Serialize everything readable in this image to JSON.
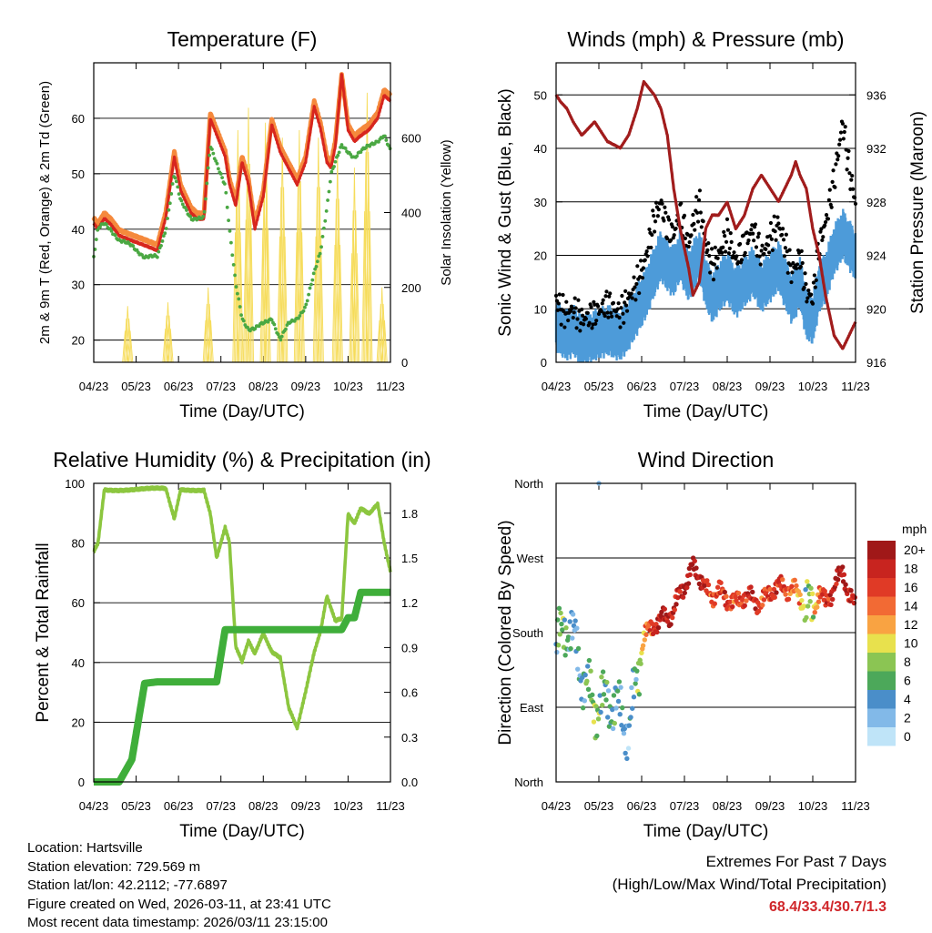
{
  "colors": {
    "temp_red": "#d7261e",
    "temp_orange": "#f5893c",
    "dewpoint_green": "#4aa843",
    "insolation_yellow": "#f6dc5a",
    "wind_blue": "#4d9bd9",
    "gust_black": "#000000",
    "pressure_maroon": "#a11c1c",
    "rh_lightgreen": "#8cc63f",
    "precip_green": "#3fae3a"
  },
  "chart_data": [
    {
      "id": "temperature",
      "type": "line",
      "title": "Temperature (F)",
      "xlabel": "Time (Day/UTC)",
      "ylabel": "2m & 9m T (Red, Orange) & 2m Td (Green)",
      "y2label": "Solar Insolation (Yellow)",
      "x_ticks": [
        "04/23",
        "05/23",
        "06/23",
        "07/23",
        "08/23",
        "09/23",
        "10/23",
        "11/23"
      ],
      "ylim": [
        16,
        70
      ],
      "y_ticks": [
        20,
        30,
        40,
        50,
        60
      ],
      "y2lim": [
        0,
        800
      ],
      "y2_ticks": [
        0,
        200,
        400,
        600
      ],
      "grid": true,
      "x_index": [
        0,
        0.1,
        0.25,
        0.4,
        0.6,
        0.9,
        1.2,
        1.5,
        1.7,
        1.9,
        2.05,
        2.3,
        2.45,
        2.6,
        2.75,
        2.9,
        3.1,
        3.2,
        3.35,
        3.5,
        3.65,
        3.8,
        4.0,
        4.2,
        4.4,
        4.6,
        4.8,
        5.0,
        5.2,
        5.35,
        5.5,
        5.6,
        5.7,
        5.85,
        6.0,
        6.15,
        6.3,
        6.5,
        6.7,
        6.85,
        7.0
      ],
      "series": [
        {
          "name": "2m T",
          "color_key": "temp_red",
          "values": [
            41,
            40,
            42,
            41,
            39,
            38,
            37,
            36,
            42,
            53,
            47,
            43,
            42,
            42,
            60,
            57,
            53,
            48,
            44,
            52,
            48,
            40,
            46,
            59,
            54,
            51,
            48,
            52,
            62,
            58,
            52,
            51,
            55,
            68,
            58,
            56,
            57,
            58,
            60,
            64,
            63
          ]
        },
        {
          "name": "9m T",
          "color_key": "temp_orange",
          "values": [
            42,
            41,
            43,
            42,
            40,
            39,
            38,
            37,
            43,
            54,
            48,
            44,
            43,
            43,
            61,
            58,
            54,
            49,
            45,
            53,
            49,
            41,
            47,
            60,
            55,
            52,
            49,
            53,
            63,
            59,
            53,
            52,
            56,
            68,
            59,
            57,
            58,
            59,
            61,
            65,
            64
          ]
        },
        {
          "name": "2m Td",
          "color_key": "dewpoint_green",
          "values": [
            35,
            40,
            41,
            40,
            38,
            37,
            35,
            35,
            40,
            50,
            45,
            42,
            42,
            42,
            55,
            52,
            48,
            40,
            30,
            24,
            22,
            22,
            23,
            24,
            20,
            23,
            24,
            26,
            32,
            36,
            44,
            50,
            52,
            55,
            54,
            53,
            54,
            55,
            56,
            57,
            54
          ]
        }
      ],
      "insolation_days": [
        0.8,
        1.75,
        2.7,
        3.4,
        3.65,
        4.05,
        4.45,
        4.85,
        5.3,
        5.75,
        6.15,
        6.45,
        6.8
      ],
      "insolation_peaks": [
        150,
        160,
        200,
        620,
        680,
        640,
        600,
        620,
        600,
        560,
        520,
        720,
        200
      ]
    },
    {
      "id": "winds",
      "type": "scatter",
      "title": "Winds (mph) & Pressure (mb)",
      "xlabel": "Time (Day/UTC)",
      "ylabel": "Sonic Wind & Gust (Blue, Black)",
      "y2label": "Station Pressure (Maroon)",
      "x_ticks": [
        "04/23",
        "05/23",
        "06/23",
        "07/23",
        "08/23",
        "09/23",
        "10/23",
        "11/23"
      ],
      "ylim": [
        0,
        56
      ],
      "y_ticks": [
        0,
        10,
        20,
        30,
        40,
        50
      ],
      "y2lim": [
        916,
        938.4
      ],
      "y2_ticks": [
        916,
        920,
        924,
        928,
        932,
        936
      ],
      "grid": true,
      "x_index": [
        0,
        0.1,
        0.25,
        0.4,
        0.6,
        0.9,
        1.2,
        1.5,
        1.7,
        1.9,
        2.05,
        2.3,
        2.45,
        2.6,
        2.75,
        2.9,
        3.1,
        3.2,
        3.35,
        3.5,
        3.65,
        3.8,
        4.0,
        4.2,
        4.4,
        4.6,
        4.8,
        5.0,
        5.2,
        5.35,
        5.5,
        5.6,
        5.7,
        5.85,
        6.0,
        6.15,
        6.3,
        6.5,
        6.7,
        6.85,
        7.0
      ],
      "series": [
        {
          "name": "Sonic Wind",
          "color_key": "wind_blue",
          "values": [
            7,
            6,
            5,
            6,
            4,
            5,
            6,
            5,
            7,
            10,
            12,
            17,
            20,
            18,
            17,
            20,
            16,
            18,
            20,
            15,
            12,
            14,
            16,
            13,
            15,
            17,
            14,
            16,
            18,
            15,
            12,
            13,
            15,
            9,
            8,
            14,
            16,
            21,
            24,
            22,
            20
          ]
        },
        {
          "name": "Gust",
          "color_key": "gust_black",
          "values": [
            12,
            10,
            9,
            10,
            8,
            9,
            11,
            9,
            12,
            15,
            18,
            27,
            30,
            25,
            24,
            28,
            22,
            26,
            30,
            22,
            18,
            20,
            24,
            19,
            22,
            25,
            20,
            23,
            26,
            22,
            17,
            18,
            20,
            13,
            12,
            22,
            26,
            34,
            45,
            36,
            30
          ]
        },
        {
          "name": "Station Pressure",
          "color_key": "pressure_maroon",
          "values": [
            936,
            935.5,
            935,
            934,
            933,
            934,
            932.5,
            932,
            933,
            935,
            937,
            936,
            935,
            933,
            929,
            926,
            923,
            921,
            922,
            926,
            927,
            927,
            928,
            926,
            927,
            929,
            930,
            929,
            928,
            929,
            930,
            931,
            930,
            929,
            926,
            924,
            921,
            918,
            917,
            918,
            919
          ]
        }
      ]
    },
    {
      "id": "humidity",
      "type": "line",
      "title": "Relative Humidity (%) & Precipitation (in)",
      "xlabel": "Time (Day/UTC)",
      "ylabel": "Percent & Total Rainfall",
      "x_ticks": [
        "04/23",
        "05/23",
        "06/23",
        "07/23",
        "08/23",
        "09/23",
        "10/23",
        "11/23"
      ],
      "ylim": [
        0,
        100
      ],
      "y_ticks": [
        0,
        20,
        40,
        60,
        80,
        100
      ],
      "y2lim": [
        0,
        2.0
      ],
      "y2_ticks": [
        0.0,
        0.3,
        0.6,
        0.9,
        1.2,
        1.5,
        1.8
      ],
      "grid": true,
      "x_index": [
        0,
        0.1,
        0.25,
        0.4,
        0.6,
        0.9,
        1.2,
        1.5,
        1.7,
        1.9,
        2.05,
        2.3,
        2.45,
        2.6,
        2.75,
        2.9,
        3.1,
        3.2,
        3.35,
        3.5,
        3.65,
        3.8,
        4.0,
        4.2,
        4.4,
        4.6,
        4.8,
        5.0,
        5.2,
        5.35,
        5.5,
        5.6,
        5.7,
        5.85,
        6.0,
        6.15,
        6.3,
        6.5,
        6.7,
        6.85,
        7.0
      ],
      "series": [
        {
          "name": "Relative Humidity",
          "color_key": "rh_lightgreen",
          "values": [
            77,
            80,
            98,
            98,
            98,
            98,
            98,
            98,
            98,
            88,
            98,
            98,
            98,
            98,
            90,
            75,
            85,
            80,
            45,
            40,
            47,
            43,
            50,
            44,
            42,
            25,
            18,
            30,
            43,
            50,
            62,
            58,
            54,
            55,
            90,
            87,
            92,
            90,
            93,
            80,
            70
          ]
        },
        {
          "name": "Total Precipitation",
          "color_key": "precip_green",
          "values": [
            0.0,
            0.0,
            0.0,
            0.0,
            0.0,
            0.15,
            0.66,
            0.67,
            0.67,
            0.67,
            0.67,
            0.67,
            0.67,
            0.67,
            0.67,
            0.67,
            1.02,
            1.02,
            1.02,
            1.02,
            1.02,
            1.02,
            1.02,
            1.02,
            1.02,
            1.02,
            1.02,
            1.02,
            1.02,
            1.02,
            1.02,
            1.02,
            1.02,
            1.02,
            1.1,
            1.1,
            1.27,
            1.27,
            1.27,
            1.27,
            1.27
          ]
        }
      ]
    },
    {
      "id": "direction",
      "type": "scatter",
      "title": "Wind Direction",
      "xlabel": "Time (Day/UTC)",
      "ylabel": "Direction (Colored By Speed)",
      "x_ticks": [
        "04/23",
        "05/23",
        "06/23",
        "07/23",
        "08/23",
        "09/23",
        "10/23",
        "11/23"
      ],
      "y_ticks": [
        "North",
        "East",
        "South",
        "West",
        "North"
      ],
      "ylim": [
        0,
        360
      ],
      "grid": true,
      "x_index": [
        0,
        0.1,
        0.25,
        0.4,
        0.6,
        0.9,
        1.2,
        1.5,
        1.7,
        1.9,
        2.05,
        2.3,
        2.45,
        2.6,
        2.75,
        2.9,
        3.1,
        3.2,
        3.35,
        3.5,
        3.65,
        3.8,
        4.0,
        4.2,
        4.4,
        4.6,
        4.8,
        5.0,
        5.2,
        5.35,
        5.5,
        5.6,
        5.7,
        5.85,
        6.0,
        6.15,
        6.3,
        6.5,
        6.7,
        6.85,
        7.0
      ],
      "values": [
        160,
        175,
        190,
        175,
        130,
        90,
        100,
        85,
        60,
        130,
        175,
        190,
        195,
        200,
        205,
        230,
        245,
        260,
        250,
        230,
        225,
        230,
        220,
        215,
        225,
        220,
        215,
        230,
        235,
        235,
        230,
        230,
        225,
        210,
        205,
        230,
        215,
        235,
        255,
        225,
        210
      ],
      "speeds": [
        4,
        8,
        6,
        3,
        4,
        8,
        5,
        4,
        3,
        6,
        12,
        17,
        20,
        19,
        18,
        19,
        20,
        20,
        20,
        17,
        15,
        16,
        17,
        15,
        16,
        18,
        15,
        16,
        17,
        16,
        14,
        13,
        12,
        7,
        9,
        14,
        17,
        18,
        20,
        18,
        17
      ],
      "outlier": {
        "x": 1.0,
        "direction": 360,
        "speed": 2
      },
      "colorbar": {
        "title": "mph",
        "labels": [
          "20+",
          "18",
          "16",
          "14",
          "12",
          "10",
          "8",
          "6",
          "4",
          "2",
          "0"
        ],
        "colors": [
          "#a01818",
          "#c8241f",
          "#e03a26",
          "#f26a34",
          "#f9a342",
          "#e8e14d",
          "#8bc553",
          "#4ca85a",
          "#4a8ec9",
          "#82b9e8",
          "#bfe4f8"
        ]
      }
    }
  ],
  "footer": {
    "location": "Location: Hartsville",
    "elevation": "Station elevation: 729.569 m",
    "latlon": "Station lat/lon: 42.2112; -77.6897",
    "created": "Figure created on Wed, 2026-03-11, at 23:41 UTC",
    "recent": "Most recent data timestamp: 2026/03/11 23:15:00",
    "extremes_title": "Extremes For Past 7 Days",
    "extremes_sub": "(High/Low/Max Wind/Total Precipitation)",
    "extremes_values": "68.4/33.4/30.7/1.3"
  }
}
